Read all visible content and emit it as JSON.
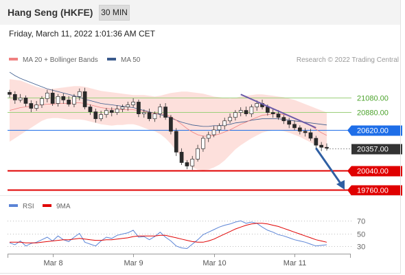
{
  "header": {
    "title": "Hang Seng (HKFE)",
    "timeframe": "30 MIN"
  },
  "datetime": "Friday, March 11, 2022 1:01:36 AM CET",
  "colors": {
    "ma20": "#f08080",
    "ma50": "#3a5a8c",
    "bollinger": "#fde0dc",
    "resistance": "#9bcf7a",
    "pivot": "#1e6ee8",
    "support": "#e00000",
    "current": "#333333",
    "rsi": "#5b84d6",
    "ma9": "#e00000",
    "arrow": "#2f5fa3",
    "candle": "#2a2a2a"
  },
  "chart_data": [
    {
      "type": "candlestick",
      "legend_position": "top-left",
      "legend": [
        {
          "name": "MA 20 + Bollinger Bands",
          "color": "#f08080"
        },
        {
          "name": "MA 50",
          "color": "#3a5a8c"
        }
      ],
      "credit": "Research © 2022 Trading Central",
      "ylim": [
        19700,
        21400
      ],
      "x_ticks": [
        {
          "label": "Mar 8",
          "index": 8
        },
        {
          "label": "Mar 9",
          "index": 23
        },
        {
          "label": "Mar 10",
          "index": 38
        },
        {
          "label": "Mar 11",
          "index": 53
        }
      ],
      "levels": [
        {
          "value": 21080,
          "label": "21080.00",
          "kind": "resistance"
        },
        {
          "value": 20880,
          "label": "20880.00",
          "kind": "resistance"
        },
        {
          "value": 20620,
          "label": "20620.00",
          "kind": "pivot"
        },
        {
          "value": 20357,
          "label": "20357.00",
          "kind": "current"
        },
        {
          "value": 20040,
          "label": "20040.00",
          "kind": "support"
        },
        {
          "value": 19760,
          "label": "19760.00",
          "kind": "support"
        }
      ],
      "closes": [
        21130,
        21050,
        21080,
        21000,
        20930,
        20980,
        21070,
        21150,
        21000,
        21100,
        21050,
        20990,
        21100,
        21170,
        20950,
        20880,
        20780,
        20840,
        20900,
        20870,
        20920,
        20950,
        20980,
        21020,
        20850,
        20870,
        20780,
        20850,
        20950,
        20800,
        20600,
        20300,
        20150,
        20100,
        20200,
        20350,
        20500,
        20550,
        20620,
        20680,
        20750,
        20800,
        20870,
        20900,
        20850,
        20950,
        21000,
        20950,
        20870,
        20850,
        20800,
        20750,
        20700,
        20650,
        20600,
        20580,
        20500,
        20400,
        20370,
        20357
      ],
      "ma20": [
        20900,
        20920,
        20940,
        20950,
        20960,
        20970,
        20980,
        20990,
        20990,
        21000,
        21000,
        21000,
        21010,
        21010,
        21000,
        20980,
        20960,
        20940,
        20930,
        20920,
        20920,
        20910,
        20910,
        20910,
        20900,
        20890,
        20870,
        20860,
        20850,
        20840,
        20810,
        20760,
        20700,
        20640,
        20590,
        20550,
        20530,
        20530,
        20540,
        20560,
        20590,
        20620,
        20660,
        20700,
        20730,
        20770,
        20800,
        20830,
        20840,
        20850,
        20850,
        20840,
        20820,
        20790,
        20760,
        20720,
        20680,
        20630,
        20580,
        20540
      ],
      "ma50": [
        21450,
        21400,
        21360,
        21330,
        21300,
        21270,
        21240,
        21210,
        21190,
        21170,
        21150,
        21130,
        21110,
        21090,
        21060,
        21040,
        21020,
        21000,
        20990,
        20980,
        20970,
        20960,
        20950,
        20940,
        20920,
        20900,
        20880,
        20860,
        20840,
        20820,
        20790,
        20760,
        20730,
        20710,
        20690,
        20680,
        20670,
        20670,
        20680,
        20680,
        20690,
        20700,
        20720,
        20730,
        20740,
        20760,
        20770,
        20780,
        20780,
        20780,
        20780,
        20770,
        20760,
        20750,
        20740,
        20730,
        20720,
        20710,
        20700,
        20690
      ],
      "bb_upper": [
        21350,
        21340,
        21330,
        21300,
        21270,
        21240,
        21220,
        21210,
        21210,
        21220,
        21230,
        21240,
        21250,
        21250,
        21240,
        21220,
        21200,
        21180,
        21170,
        21160,
        21150,
        21140,
        21130,
        21120,
        21120,
        21120,
        21110,
        21100,
        21110,
        21130,
        21150,
        21160,
        21170,
        21170,
        21160,
        21150,
        21140,
        21120,
        21100,
        21090,
        21080,
        21070,
        21080,
        21100,
        21110,
        21120,
        21130,
        21130,
        21120,
        21110,
        21100,
        21090,
        21070,
        21050,
        21020,
        20990,
        20960,
        20930,
        20900,
        20870
      ],
      "bb_lower": [
        20450,
        20500,
        20550,
        20600,
        20650,
        20700,
        20750,
        20780,
        20790,
        20790,
        20780,
        20770,
        20770,
        20770,
        20760,
        20740,
        20720,
        20700,
        20690,
        20680,
        20690,
        20690,
        20700,
        20700,
        20680,
        20650,
        20620,
        20600,
        20560,
        20500,
        20420,
        20320,
        20220,
        20140,
        20080,
        20050,
        20040,
        20050,
        20080,
        20120,
        20180,
        20260,
        20340,
        20400,
        20450,
        20500,
        20540,
        20580,
        20600,
        20610,
        20610,
        20600,
        20580,
        20550,
        20520,
        20480,
        20440,
        20400,
        20370,
        20350
      ],
      "trendline": {
        "from": [
          43,
          21130
        ],
        "to": [
          57,
          20650
        ]
      },
      "forecast_arrow": {
        "from": [
          57,
          20357
        ],
        "to": [
          59,
          19760
        ]
      }
    },
    {
      "type": "line",
      "legend": [
        {
          "name": "RSI",
          "color": "#5b84d6"
        },
        {
          "name": "9MA",
          "color": "#e00000"
        }
      ],
      "ylim": [
        20,
        80
      ],
      "y_ticks": [
        {
          "value": 70,
          "label": "70"
        },
        {
          "value": 50,
          "label": "50"
        },
        {
          "value": 30,
          "label": "30"
        }
      ],
      "series": [
        {
          "name": "RSI",
          "values": [
            35,
            32,
            38,
            30,
            34,
            36,
            40,
            44,
            38,
            46,
            40,
            37,
            44,
            50,
            36,
            33,
            30,
            38,
            44,
            42,
            47,
            49,
            51,
            55,
            44,
            45,
            40,
            45,
            52,
            44,
            38,
            30,
            27,
            26,
            33,
            40,
            48,
            52,
            56,
            60,
            63,
            65,
            68,
            70,
            66,
            68,
            66,
            60,
            55,
            52,
            48,
            46,
            43,
            40,
            38,
            36,
            33,
            30,
            31,
            32
          ]
        },
        {
          "name": "9MA",
          "values": [
            36,
            36,
            36,
            35,
            35,
            35,
            36,
            37,
            38,
            39,
            40,
            40,
            41,
            42,
            41,
            40,
            39,
            39,
            40,
            40,
            41,
            42,
            43,
            45,
            46,
            46,
            46,
            46,
            47,
            47,
            45,
            43,
            41,
            39,
            37,
            36,
            36,
            38,
            41,
            45,
            49,
            53,
            57,
            60,
            63,
            65,
            66,
            66,
            65,
            63,
            61,
            58,
            55,
            52,
            49,
            46,
            43,
            40,
            38,
            36
          ]
        }
      ]
    }
  ]
}
